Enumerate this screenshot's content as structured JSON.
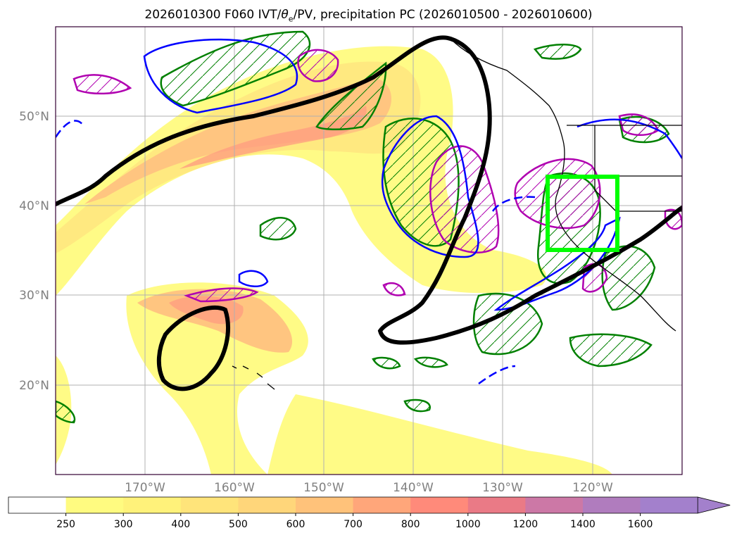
{
  "title": {
    "prefix": "2026010300 F060 IVT/",
    "theta": "θ",
    "theta_sub": "e",
    "suffix": "/PV, precipitation PC (2026010500 - 2026010600)"
  },
  "map": {
    "extent_lon": [
      -180,
      -110
    ],
    "extent_lat": [
      10,
      60
    ],
    "gridlines": true,
    "lat_labels": [
      {
        "lat": 50,
        "text": "50°N"
      },
      {
        "lat": 40,
        "text": "40°N"
      },
      {
        "lat": 30,
        "text": "30°N"
      },
      {
        "lat": 20,
        "text": "20°N"
      }
    ],
    "lon_labels": [
      {
        "lon": -170,
        "text": "170°W"
      },
      {
        "lon": -160,
        "text": "160°W"
      },
      {
        "lon": -150,
        "text": "150°W"
      },
      {
        "lon": -140,
        "text": "140°W"
      },
      {
        "lon": -130,
        "text": "130°W"
      },
      {
        "lon": -120,
        "text": "120°W"
      }
    ],
    "highlight_box": {
      "lon_min": -125,
      "lon_max": -118,
      "lat_min": 35,
      "lat_max": 43,
      "color": "#00ff00"
    },
    "colors": {
      "pv_contour": "#000000",
      "theta_contour": "#0000ff",
      "precip_pc_positive": "#008000",
      "precip_pc_negative": "#b000b0",
      "coast": "#000000"
    }
  },
  "colorbar": {
    "levels": [
      "250",
      "300",
      "400",
      "500",
      "600",
      "700",
      "800",
      "1000",
      "1200",
      "1400",
      "1600"
    ],
    "colors": [
      "#ffffff",
      "#fffb80",
      "#fff27a",
      "#ffe47a",
      "#ffd67a",
      "#ffc27a",
      "#ffa67a",
      "#ff8a7a",
      "#ea7a86",
      "#cc78a6",
      "#b07cbe",
      "#a380cc"
    ],
    "extend": "max"
  }
}
